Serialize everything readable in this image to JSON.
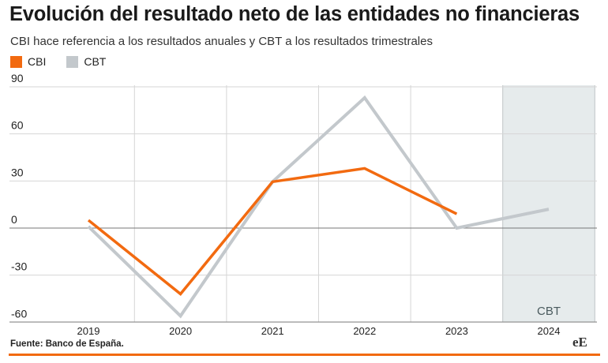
{
  "title": "Evolución del resultado neto de las entidades no financieras",
  "subtitle": "CBI hace referencia a los resultados anuales y CBT a los resultados trimestrales",
  "source": "Fuente: Banco de España.",
  "logo_text": "eE",
  "colors": {
    "accent": "#f26a10",
    "cbt_line": "#c3c8cc",
    "shade": "#e6ebec",
    "grid": "#d6d6d6"
  },
  "chart_data": {
    "type": "line",
    "x": [
      "2019",
      "2020",
      "2021",
      "2022",
      "2023",
      "2024"
    ],
    "yticks": [
      90,
      60,
      30,
      0,
      -30,
      -60
    ],
    "ylim": [
      -60,
      90
    ],
    "shaded_region": {
      "from": 2023.5,
      "to": 2024.5,
      "label": "CBT"
    },
    "series": [
      {
        "name": "CBI",
        "color": "#f26a10",
        "values": [
          5,
          -42,
          29.5,
          38,
          9,
          null
        ]
      },
      {
        "name": "CBT",
        "color": "#c3c8cc",
        "values": [
          1,
          -56,
          29.5,
          83,
          0,
          12
        ]
      }
    ]
  }
}
